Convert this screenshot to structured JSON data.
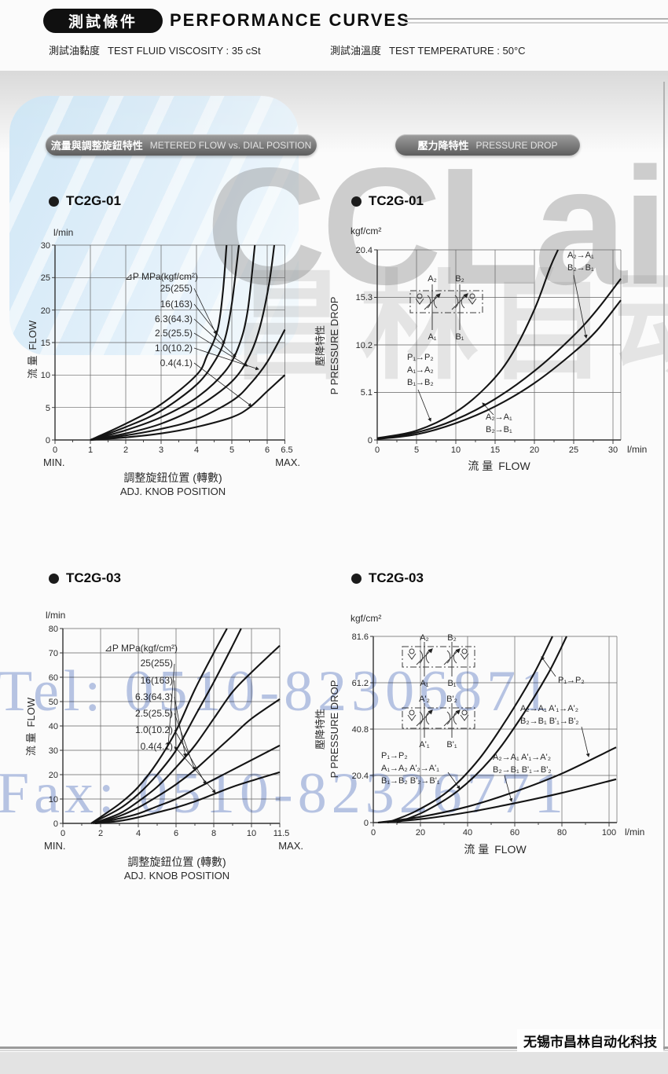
{
  "header": {
    "badge": "測試條件",
    "title": "PERFORMANCE CURVES",
    "viscosity_zh": "測試油黏度",
    "viscosity_en": "TEST FLUID VISCOSITY : 35 cSt",
    "temperature_zh": "測試油溫度",
    "temperature_en": "TEST TEMPERATURE : 50°C"
  },
  "tabs": {
    "flow_zh": "流量與調整旋鈕特性",
    "flow_en": "METERED FLOW vs. DIAL POSITION",
    "pd_zh": "壓力降特性",
    "pd_en": "PRESSURE DROP"
  },
  "watermark": {
    "logo": "CCLair",
    "logo_zh": "昌林自动化",
    "tel": "Tel: 0510-82306871",
    "fax": "Fax: 0510-82326771"
  },
  "footer": {
    "company": "无锡市昌林自动化科技"
  },
  "colors": {
    "curve": "#141414",
    "grid": "#666666",
    "watermark_blue": "#7f96d2",
    "blob_blue": "#cde6f6",
    "tab_gray": "#6e6e6e"
  },
  "chart_data": [
    {
      "id": "tc2g01-flow",
      "type": "line",
      "title": "TC2G-01",
      "y_unit": "l/min",
      "ylabel_zh": "流 量",
      "ylabel_en": "FLOW",
      "xlabel_zh": "調整旋鈕位置 (轉數)",
      "xlabel_en": "ADJ. KNOB POSITION",
      "x_min_label": "MIN.",
      "x_max_label": "MAX.",
      "xlim": [
        0,
        6.5
      ],
      "ylim": [
        0,
        30
      ],
      "grid": true,
      "xticks": [
        "0",
        "1",
        "2",
        "3",
        "4",
        "5",
        "6",
        "6.5"
      ],
      "yticks": [
        "30",
        "25",
        "20",
        "15",
        "10",
        "5",
        "0"
      ],
      "legend": {
        "title": "⊿P MPa(kgf/cm²)",
        "items": [
          "25(255)",
          "16(163)",
          "6.3(64.3)",
          "2.5(25.5)",
          "1.0(10.2)",
          "0.4(4.1)"
        ]
      },
      "series": [
        {
          "name": "25(255)",
          "points": [
            [
              1,
              0
            ],
            [
              2,
              2.5
            ],
            [
              3,
              5.5
            ],
            [
              4,
              10
            ],
            [
              4.3,
              13
            ],
            [
              4.6,
              17
            ],
            [
              4.75,
              23
            ],
            [
              4.85,
              30
            ]
          ]
        },
        {
          "name": "16(163)",
          "points": [
            [
              1,
              0
            ],
            [
              2,
              2
            ],
            [
              3,
              4.5
            ],
            [
              4,
              8.5
            ],
            [
              4.5,
              12
            ],
            [
              4.8,
              15.5
            ],
            [
              5,
              21
            ],
            [
              5.2,
              30
            ]
          ]
        },
        {
          "name": "6.3(64.3)",
          "points": [
            [
              1,
              0
            ],
            [
              2,
              1.5
            ],
            [
              3,
              3.5
            ],
            [
              4,
              6.5
            ],
            [
              4.8,
              10.5
            ],
            [
              5.2,
              14.5
            ],
            [
              5.45,
              20
            ],
            [
              5.65,
              30
            ]
          ]
        },
        {
          "name": "2.5(25.5)",
          "points": [
            [
              1,
              0
            ],
            [
              2,
              1
            ],
            [
              3,
              2.5
            ],
            [
              4,
              5
            ],
            [
              5,
              9
            ],
            [
              5.5,
              13
            ],
            [
              5.8,
              17.5
            ],
            [
              6.05,
              24
            ],
            [
              6.2,
              30
            ]
          ]
        },
        {
          "name": "1.0(10.2)",
          "points": [
            [
              1,
              0
            ],
            [
              2,
              0.7
            ],
            [
              3,
              1.7
            ],
            [
              4,
              3.2
            ],
            [
              5,
              6
            ],
            [
              5.5,
              8.5
            ],
            [
              6,
              12
            ],
            [
              6.5,
              17
            ]
          ]
        },
        {
          "name": "0.4(4.1)",
          "points": [
            [
              1,
              0
            ],
            [
              2,
              0.4
            ],
            [
              3,
              1
            ],
            [
              4,
              2
            ],
            [
              5,
              3.5
            ],
            [
              5.5,
              5
            ],
            [
              6,
              7.5
            ],
            [
              6.5,
              10
            ]
          ]
        }
      ]
    },
    {
      "id": "tc2g01-pd",
      "type": "line",
      "title": "TC2G-01",
      "y_unit": "kgf/cm²",
      "x_unit": "l/min",
      "ylabel_zh": "壓降特性",
      "ylabel_en": "P PRESSURE DROP",
      "xlabel_zh": "流 量",
      "xlabel_en": "FLOW",
      "xlim": [
        0,
        31
      ],
      "ylim": [
        0,
        20.4
      ],
      "grid": true,
      "xticks": [
        "0",
        "5",
        "10",
        "15",
        "20",
        "25",
        "30"
      ],
      "yticks": [
        "20.4",
        "15.3",
        "10.2",
        "5.1",
        "0"
      ],
      "valve": {
        "top": [
          "A₂",
          "B₂"
        ],
        "bottom": [
          "A₁",
          "B₁"
        ]
      },
      "annotations": {
        "top_right": [
          "A₂→A₁",
          "B₂→B₁"
        ],
        "left": [
          "P₁→P₂",
          "A₁→A₂",
          "B₁→B₂"
        ],
        "bottom": [
          "A₂→A₁",
          "B₂→B₁"
        ]
      },
      "series": [
        {
          "name": "P₁→P₂ / A₁→A₂ / B₁→B₂",
          "points": [
            [
              0,
              0.2
            ],
            [
              5,
              1
            ],
            [
              10,
              3
            ],
            [
              14,
              5.8
            ],
            [
              17,
              9
            ],
            [
              20,
              14
            ],
            [
              22,
              18.5
            ],
            [
              23,
              20.4
            ]
          ]
        },
        {
          "name": "A₂→A₁ / B₂→B₁ (upper)",
          "points": [
            [
              0,
              0.15
            ],
            [
              5,
              0.8
            ],
            [
              10,
              2.2
            ],
            [
              15,
              4.4
            ],
            [
              20,
              7.4
            ],
            [
              25,
              11.2
            ],
            [
              28,
              14
            ],
            [
              31,
              17.3
            ]
          ]
        },
        {
          "name": "A₂→A₁ / B₂→B₁ (lower)",
          "points": [
            [
              0,
              0.1
            ],
            [
              5,
              0.6
            ],
            [
              10,
              1.8
            ],
            [
              15,
              3.6
            ],
            [
              20,
              6.1
            ],
            [
              25,
              9.4
            ],
            [
              28,
              11.8
            ],
            [
              31,
              15
            ]
          ]
        }
      ]
    },
    {
      "id": "tc2g03-flow",
      "type": "line",
      "title": "TC2G-03",
      "y_unit": "l/min",
      "ylabel_zh": "流 量",
      "ylabel_en": "FLOW",
      "xlabel_zh": "調整旋鈕位置 (轉數)",
      "xlabel_en": "ADJ. KNOB POSITION",
      "x_min_label": "MIN.",
      "x_max_label": "MAX.",
      "xlim": [
        0,
        11.5
      ],
      "ylim": [
        0,
        80
      ],
      "grid": true,
      "xticks": [
        "0",
        "2",
        "4",
        "6",
        "8",
        "10",
        "11.5"
      ],
      "yticks": [
        "80",
        "70",
        "60",
        "50",
        "40",
        "30",
        "20",
        "10",
        "0"
      ],
      "legend": {
        "title": "⊿P MPa(kgf/cm²)",
        "items": [
          "25(255)",
          "16(163)",
          "6.3(64.3)",
          "2.5(25.5)",
          "1.0(10.2)",
          "0.4(4.1)"
        ]
      },
      "series": [
        {
          "name": "25(255)",
          "points": [
            [
              1.5,
              0
            ],
            [
              3,
              8
            ],
            [
              4,
              15
            ],
            [
              5,
              25
            ],
            [
              6,
              38
            ],
            [
              7,
              55
            ],
            [
              8,
              70
            ],
            [
              8.7,
              80
            ]
          ]
        },
        {
          "name": "16(163)",
          "points": [
            [
              1.5,
              0
            ],
            [
              3,
              6
            ],
            [
              4,
              12
            ],
            [
              5,
              20
            ],
            [
              6,
              30
            ],
            [
              7,
              44
            ],
            [
              8,
              58
            ],
            [
              9,
              73
            ],
            [
              9.45,
              80
            ]
          ]
        },
        {
          "name": "6.3(64.3)",
          "points": [
            [
              1.6,
              0
            ],
            [
              3,
              4
            ],
            [
              4,
              9
            ],
            [
              5,
              15
            ],
            [
              6,
              23
            ],
            [
              7,
              32
            ],
            [
              8,
              43
            ],
            [
              9,
              54
            ],
            [
              10,
              62
            ],
            [
              11.5,
              73
            ]
          ]
        },
        {
          "name": "2.5(25.5)",
          "points": [
            [
              1.7,
              0
            ],
            [
              3,
              3
            ],
            [
              4,
              6.5
            ],
            [
              5,
              11
            ],
            [
              6,
              16
            ],
            [
              7,
              22
            ],
            [
              8,
              29
            ],
            [
              9,
              36
            ],
            [
              10,
              43
            ],
            [
              11.5,
              51
            ]
          ]
        },
        {
          "name": "1.0(10.2)",
          "points": [
            [
              1.7,
              0
            ],
            [
              3,
              2
            ],
            [
              4,
              4
            ],
            [
              5,
              7
            ],
            [
              6,
              10
            ],
            [
              7,
              14
            ],
            [
              8,
              18
            ],
            [
              9,
              22
            ],
            [
              10,
              26
            ],
            [
              11.5,
              32
            ]
          ]
        },
        {
          "name": "0.4(4.1)",
          "points": [
            [
              1.7,
              0
            ],
            [
              3,
              1
            ],
            [
              4,
              2.5
            ],
            [
              5,
              4.5
            ],
            [
              6,
              6.5
            ],
            [
              7,
              9
            ],
            [
              8,
              12
            ],
            [
              9,
              15
            ],
            [
              10,
              17.5
            ],
            [
              11.5,
              21
            ]
          ]
        }
      ]
    },
    {
      "id": "tc2g03-pd",
      "type": "line",
      "title": "TC2G-03",
      "y_unit": "kgf/cm²",
      "x_unit": "l/min",
      "ylabel_zh": "壓降特性",
      "ylabel_en": "P PRESSURE DROP",
      "xlabel_zh": "流 量",
      "xlabel_en": "FLOW",
      "xlim": [
        0,
        103
      ],
      "ylim": [
        0,
        81.6
      ],
      "grid": true,
      "xticks": [
        "0",
        "20",
        "40",
        "60",
        "80",
        "100"
      ],
      "yticks": [
        "81.6",
        "61.2",
        "40.8",
        "20.4",
        "0"
      ],
      "valve1": {
        "top": [
          "A₂",
          "B₂"
        ],
        "bottom": [
          "A₁",
          "B₁"
        ]
      },
      "valve2": {
        "top": [
          "A'₂",
          "B'₂"
        ],
        "bottom": [
          "A'₁",
          "B'₁"
        ]
      },
      "annotations": {
        "p": "P₁→P₂",
        "mid": [
          "A₂→A₁  A'₁→A'₂",
          "B₂→B₁  B'₁→B'₂"
        ],
        "left": [
          "P₁→P₂",
          "A₁→A₂  A'₂→A'₁",
          "B₁→B₂  B'₂→B'₁"
        ],
        "low": [
          "A₂→A₁  A'₁→A'₂",
          "B₂→B₁  B'₁→B'₂"
        ]
      },
      "series": [
        {
          "name": "P₁→P₂ (forward)",
          "points": [
            [
              6,
              0
            ],
            [
              18,
              5
            ],
            [
              32,
              14
            ],
            [
              45,
              28
            ],
            [
              57,
              46
            ],
            [
              68,
              65
            ],
            [
              76,
              81.6
            ]
          ]
        },
        {
          "name": "A₁→A₂ / B₁→B₂ (forward)",
          "points": [
            [
              10,
              0
            ],
            [
              22,
              5
            ],
            [
              36,
              14
            ],
            [
              50,
              28
            ],
            [
              62,
              45
            ],
            [
              74,
              65
            ],
            [
              82,
              81.6
            ]
          ]
        },
        {
          "name": "A₂→A₁ / B₂→B₁ (upper)",
          "points": [
            [
              2,
              0
            ],
            [
              20,
              2.5
            ],
            [
              40,
              7
            ],
            [
              60,
              13.5
            ],
            [
              80,
              21.5
            ],
            [
              103,
              33
            ]
          ]
        },
        {
          "name": "A₂→A₁ / B₂→B₁ (lower)",
          "points": [
            [
              2,
              0
            ],
            [
              20,
              1.5
            ],
            [
              40,
              4.5
            ],
            [
              60,
              8.5
            ],
            [
              80,
              13
            ],
            [
              103,
              19
            ]
          ]
        }
      ]
    }
  ]
}
